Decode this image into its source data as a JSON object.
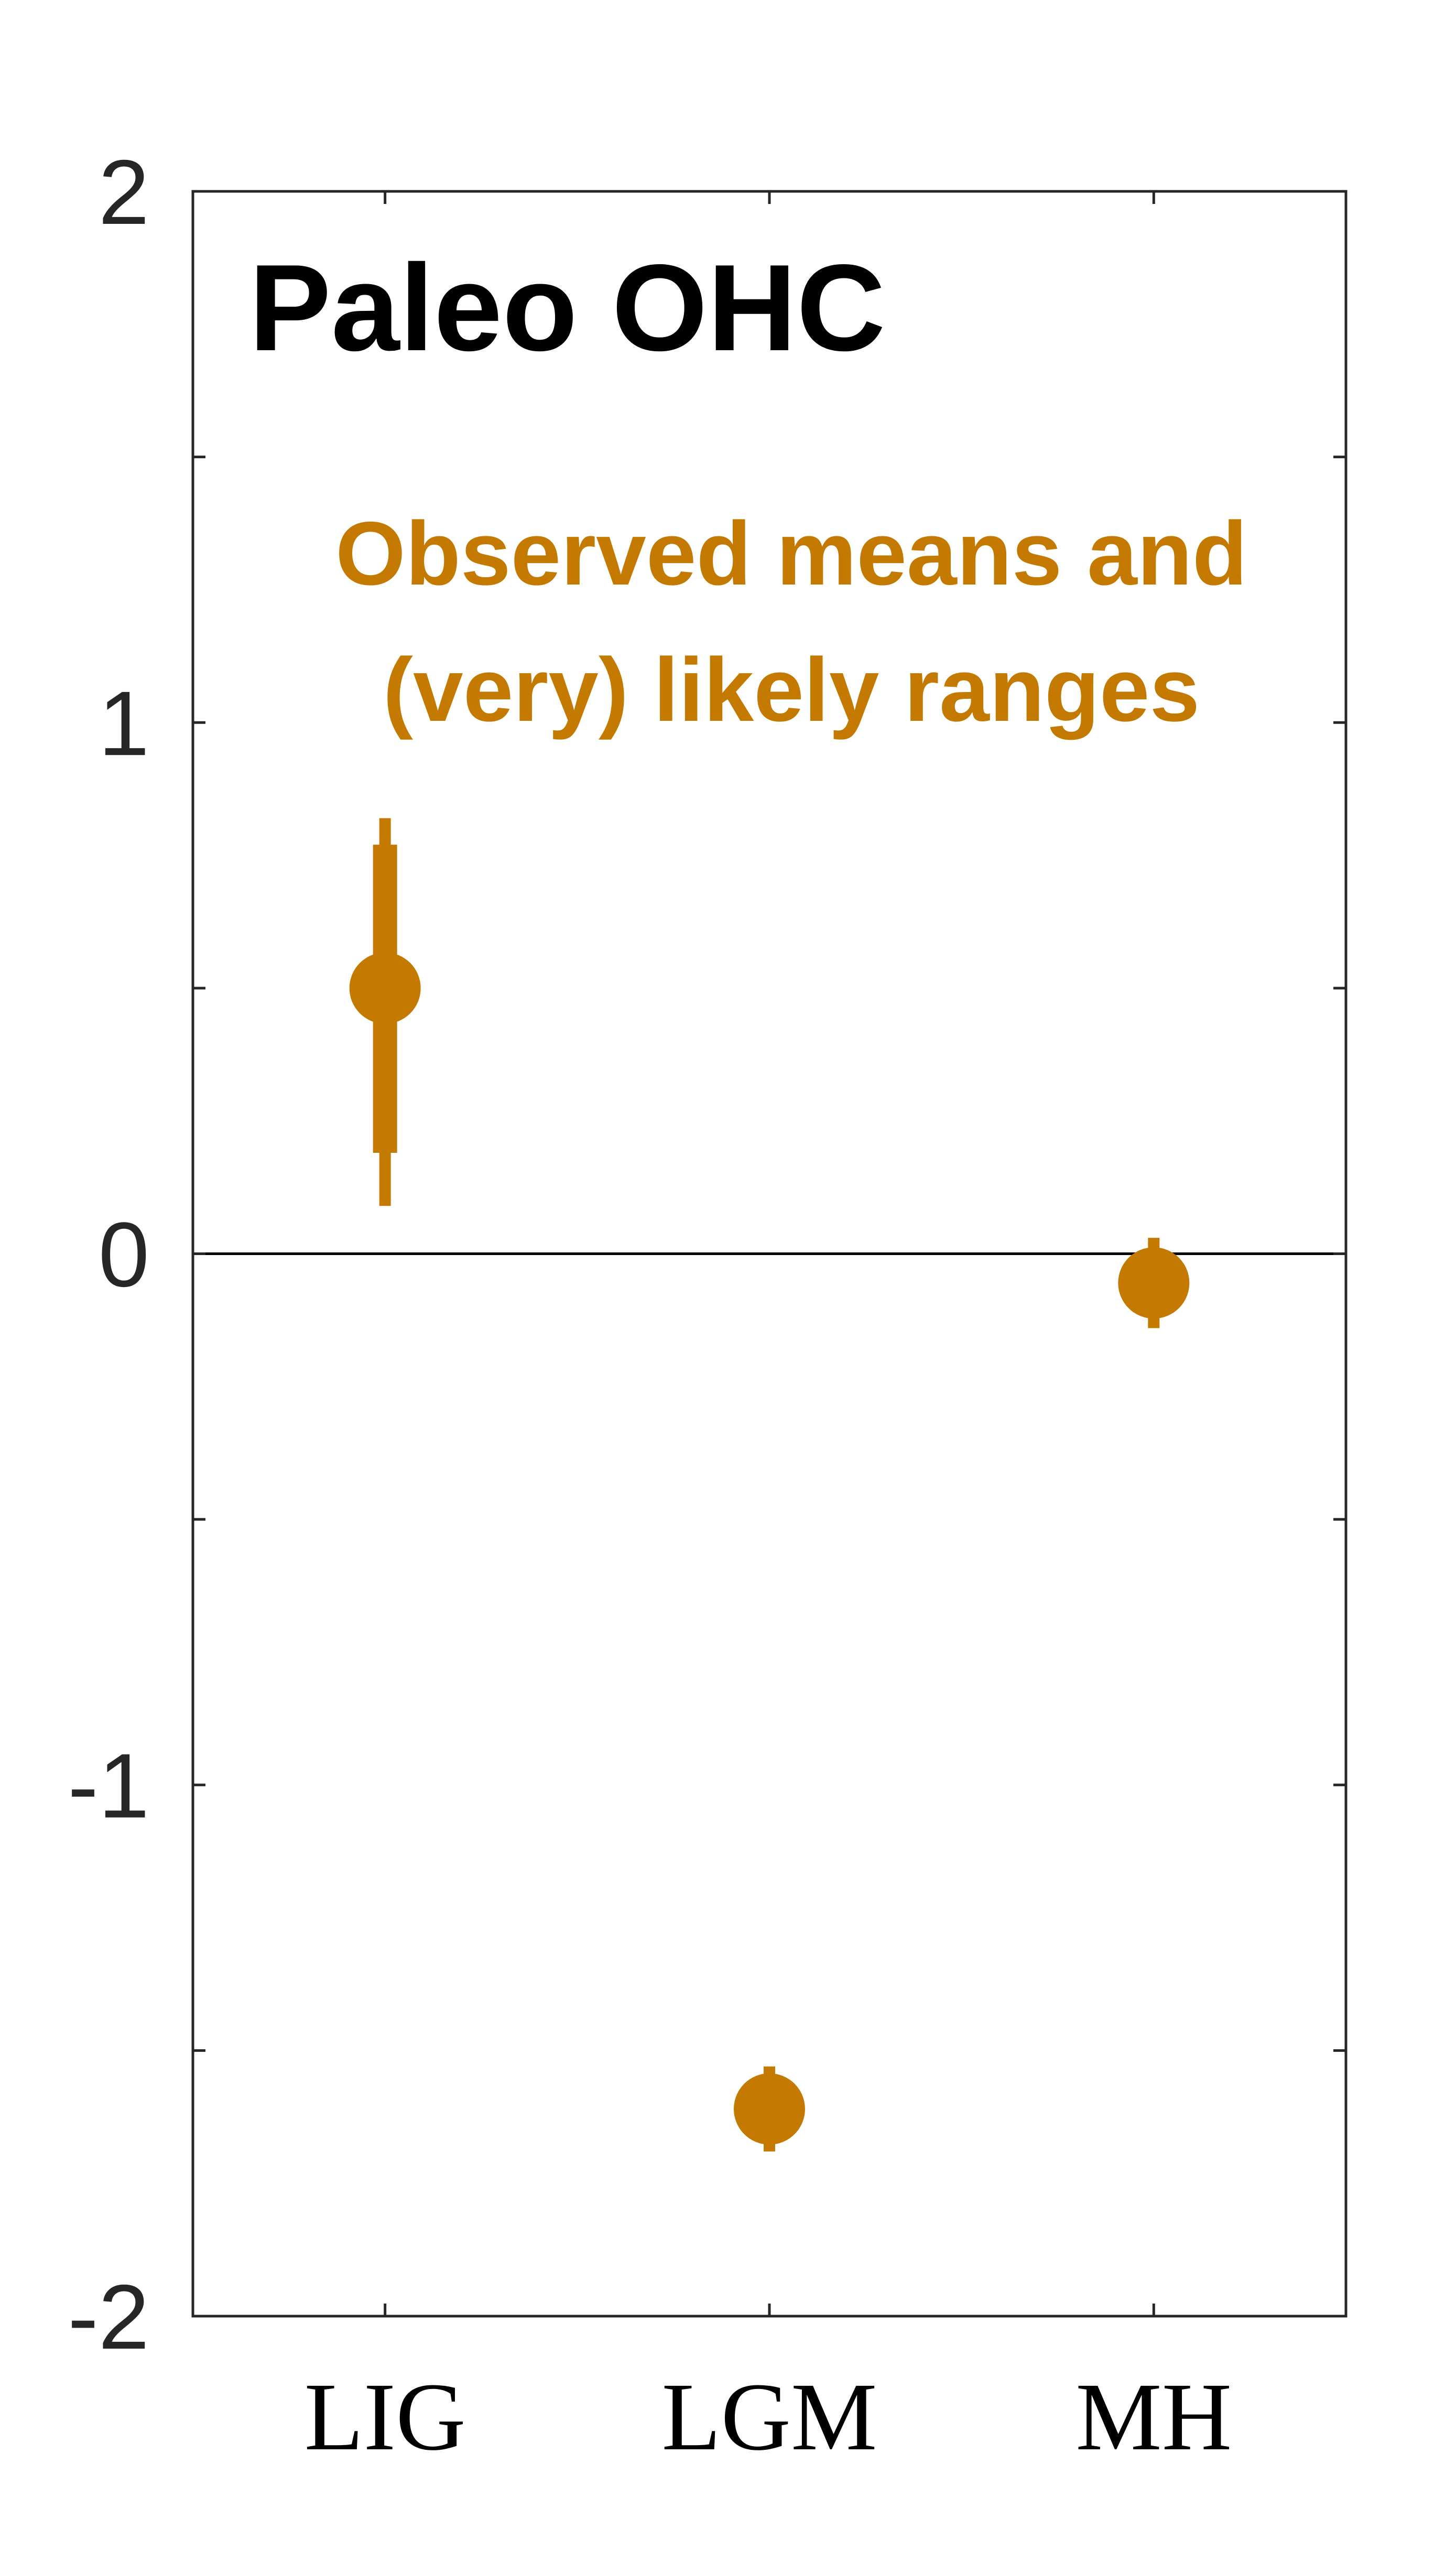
{
  "chart_data": {
    "type": "scatter",
    "title": "Paleo OHC",
    "annotation": [
      "Observed means and",
      "(very) likely ranges"
    ],
    "xlabel": "",
    "ylabel": "",
    "categories": [
      "LIG",
      "LGM",
      "MH"
    ],
    "ylim": [
      -2,
      2
    ],
    "yticks": [
      -2,
      -1.5,
      -1,
      -0.5,
      0,
      0.5,
      1,
      1.5,
      2
    ],
    "ytick_labels": [
      "-2",
      "",
      "-1",
      "",
      "0",
      "",
      "1",
      "",
      "2"
    ],
    "zero_line": true,
    "grid": false,
    "legend": "none",
    "colors": {
      "series": "#c47a00",
      "axis": "#262626",
      "title": "#000000"
    },
    "series": [
      {
        "values": [
          0.5,
          -1.61,
          -0.055
        ],
        "likely_range": [
          [
            0.19,
            0.77
          ],
          [
            -1.65,
            -1.57
          ],
          [
            -0.11,
            0.0
          ]
        ],
        "very_likely_range": [
          [
            0.09,
            0.82
          ],
          [
            -1.69,
            -1.53
          ],
          [
            -0.14,
            0.03
          ]
        ]
      }
    ]
  }
}
